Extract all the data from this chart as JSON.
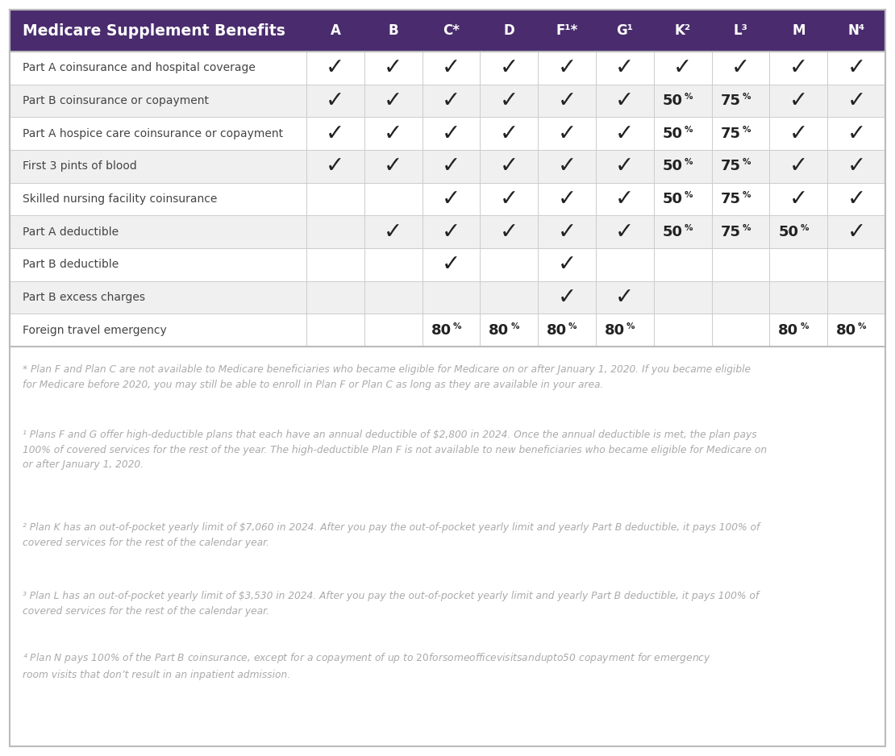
{
  "title": "Medicare Supplement Benefits",
  "header_bg": "#4a2c6e",
  "header_text_color": "#ffffff",
  "plans": [
    "A",
    "B",
    "C*",
    "D",
    "F¹*",
    "G¹",
    "K²",
    "L³",
    "M",
    "N⁴"
  ],
  "benefits": [
    "Part A coinsurance and hospital coverage",
    "Part B coinsurance or copayment",
    "Part A hospice care coinsurance or copayment",
    "First 3 pints of blood",
    "Skilled nursing facility coinsurance",
    "Part A deductible",
    "Part B deductible",
    "Part B excess charges",
    "Foreign travel emergency"
  ],
  "table_data": [
    [
      "✓",
      "✓",
      "✓",
      "✓",
      "✓",
      "✓",
      "✓",
      "✓",
      "✓",
      "✓"
    ],
    [
      "✓",
      "✓",
      "✓",
      "✓",
      "✓",
      "✓",
      "50%",
      "75%",
      "✓",
      "✓"
    ],
    [
      "✓",
      "✓",
      "✓",
      "✓",
      "✓",
      "✓",
      "50%",
      "75%",
      "✓",
      "✓"
    ],
    [
      "✓",
      "✓",
      "✓",
      "✓",
      "✓",
      "✓",
      "50%",
      "75%",
      "✓",
      "✓"
    ],
    [
      "",
      "",
      "✓",
      "✓",
      "✓",
      "✓",
      "50%",
      "75%",
      "✓",
      "✓"
    ],
    [
      "",
      "✓",
      "✓",
      "✓",
      "✓",
      "✓",
      "50%",
      "75%",
      "50%",
      "✓"
    ],
    [
      "",
      "",
      "✓",
      "",
      "✓",
      "",
      "",
      "",
      "",
      ""
    ],
    [
      "",
      "",
      "",
      "",
      "✓",
      "✓",
      "",
      "",
      "",
      ""
    ],
    [
      "",
      "",
      "80%",
      "80%",
      "80%",
      "80%",
      "",
      "",
      "80%",
      "80%"
    ]
  ],
  "row_colors": [
    "#ffffff",
    "#f0f0f0",
    "#ffffff",
    "#f0f0f0",
    "#ffffff",
    "#f0f0f0",
    "#ffffff",
    "#f0f0f0",
    "#ffffff"
  ],
  "footnote1": "* Plan F and Plan C are not available to Medicare beneficiaries who became eligible for Medicare on or after January 1, 2020. If you became eligible\nfor Medicare before 2020, you may still be able to enroll in Plan F or Plan C as long as they are available in your area.",
  "footnote2": "¹ Plans F and G offer high-deductible plans that each have an annual deductible of $2,800 in 2024. Once the annual deductible is met, the plan pays\n100% of covered services for the rest of the year. The high-deductible Plan F is not available to new beneficiaries who became eligible for Medicare on\nor after January 1, 2020.",
  "footnote3": "² Plan K has an out-of-pocket yearly limit of $7,060 in 2024. After you pay the out-of-pocket yearly limit and yearly Part B deductible, it pays 100% of\ncovered services for the rest of the calendar year.",
  "footnote4": "³ Plan L has an out-of-pocket yearly limit of $3,530 in 2024. After you pay the out-of-pocket yearly limit and yearly Part B deductible, it pays 100% of\ncovered services for the rest of the calendar year.",
  "footnote5": "⁴ Plan N pays 100% of the Part B coinsurance, except for a copayment of up to $20 for some office visits and up to $50 copayment for emergency\nroom visits that don’t result in an inpatient admission.",
  "outer_border_color": "#bbbbbb",
  "cell_border_color": "#cccccc",
  "benefit_text_color": "#444444",
  "check_color": "#222222",
  "percent_color": "#222222",
  "footnote_color": "#aaaaaa",
  "fig_width": 11.1,
  "fig_height": 9.38,
  "dpi": 100
}
